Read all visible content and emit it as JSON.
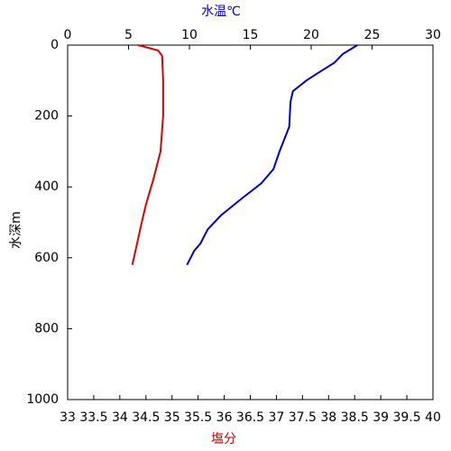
{
  "chart_data": {
    "type": "line",
    "xlabel": "塩分",
    "x2label": "水温℃",
    "ylabel": "水深m",
    "xlabel_color": "#cc0000",
    "x2label_color": "#0000cc",
    "xlim": [
      33,
      40
    ],
    "xticks": [
      33,
      33.5,
      34,
      34.5,
      35,
      35.5,
      36,
      36.5,
      37,
      37.5,
      38,
      38.5,
      39,
      39.5,
      40
    ],
    "x2lim": [
      0,
      30
    ],
    "x2ticks": [
      0,
      5,
      10,
      15,
      20,
      25,
      30
    ],
    "ylim": [
      0,
      1000
    ],
    "yticks": [
      0,
      200,
      400,
      600,
      800,
      1000
    ],
    "y_inverted": true,
    "series": [
      {
        "color": "#dd0000",
        "axis": "x",
        "values": [
          34.35,
          34.73,
          34.81,
          34.83,
          34.83,
          34.78,
          34.64,
          34.5,
          34.42,
          34.33,
          34.24
        ],
        "depth": [
          0,
          15,
          30,
          100,
          200,
          300,
          380,
          450,
          500,
          560,
          620
        ]
      },
      {
        "color": "#0000cc",
        "axis": "x2",
        "values": [
          23.8,
          22.6,
          21.9,
          20.5,
          19.6,
          18.5,
          18.3,
          18.2,
          17.4,
          16.9,
          15.9,
          14.4,
          12.6,
          11.5,
          10.9,
          10.4,
          9.8
        ],
        "depth": [
          0,
          25,
          50,
          80,
          100,
          130,
          160,
          230,
          300,
          350,
          390,
          430,
          480,
          520,
          560,
          580,
          620
        ]
      }
    ]
  }
}
